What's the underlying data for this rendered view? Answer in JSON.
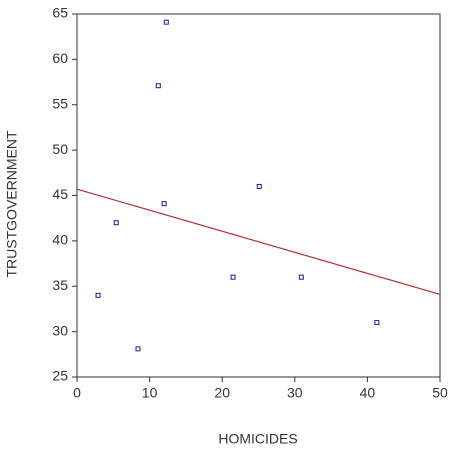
{
  "chart_data": {
    "type": "scatter",
    "x_label": "HOMICIDES",
    "y_label": "TRUSTGOVERNMENT",
    "x": [
      12.3,
      11.2,
      12.0,
      5.4,
      25.1,
      2.9,
      8.4,
      21.5,
      30.9,
      41.3
    ],
    "values": [
      64.1,
      57.1,
      44.1,
      42.0,
      46.0,
      34.0,
      28.1,
      36.0,
      36.0,
      31.0
    ],
    "color": "#1a1aa0",
    "fit_line": {
      "x": [
        0,
        50
      ],
      "values": [
        45.7,
        34.1
      ],
      "color": "#b03030"
    },
    "xlim": [
      0,
      50
    ],
    "xticks": [
      0,
      10,
      20,
      30,
      40,
      50
    ],
    "ylim": [
      25,
      65
    ],
    "yticks": [
      25,
      30,
      35,
      40,
      45,
      50,
      55,
      60,
      65
    ]
  }
}
